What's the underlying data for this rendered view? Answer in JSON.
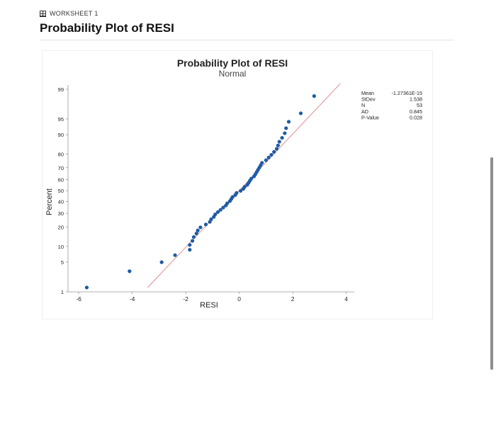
{
  "worksheet": {
    "label": "WORKSHEET 1"
  },
  "page": {
    "title": "Probability Plot of RESI"
  },
  "chart_data": {
    "type": "scatter",
    "title": "Probability Plot of RESI",
    "subtitle": "Normal",
    "xlabel": "RESI",
    "ylabel": "Percent",
    "x_ticks": [
      -6,
      -4,
      -2,
      0,
      2,
      4
    ],
    "y_ticks": [
      1,
      5,
      10,
      20,
      30,
      40,
      50,
      60,
      70,
      80,
      90,
      95,
      99
    ],
    "xlim": [
      -6.4,
      4.3
    ],
    "y_scale": "normal-probability",
    "grid": false,
    "fit_line": {
      "mean": 0,
      "stdev": 1.538,
      "color": "#e08f8f"
    },
    "point_color": "#1f5aa6",
    "x": [
      -5.7,
      -4.1,
      -2.9,
      -2.4,
      -1.85,
      -1.85,
      -1.75,
      -1.7,
      -1.6,
      -1.55,
      -1.45,
      -1.25,
      -1.1,
      -1.05,
      -0.95,
      -0.9,
      -0.8,
      -0.7,
      -0.6,
      -0.5,
      -0.45,
      -0.35,
      -0.3,
      -0.25,
      -0.15,
      -0.1,
      0.05,
      0.15,
      0.2,
      0.3,
      0.35,
      0.4,
      0.45,
      0.55,
      0.6,
      0.65,
      0.7,
      0.75,
      0.8,
      0.85,
      1.0,
      1.1,
      1.2,
      1.3,
      1.4,
      1.45,
      1.5,
      1.6,
      1.7,
      1.75,
      1.85,
      2.3,
      2.8
    ],
    "y": [
      1.3,
      3.2,
      5.0,
      6.9,
      8.7,
      10.6,
      12.4,
      14.3,
      16.2,
      18.0,
      19.9,
      21.8,
      23.6,
      25.5,
      27.3,
      29.2,
      31.1,
      32.9,
      34.8,
      36.6,
      38.5,
      40.4,
      42.2,
      44.1,
      45.9,
      47.8,
      49.7,
      51.5,
      53.4,
      55.2,
      57.1,
      59.0,
      60.8,
      62.7,
      64.5,
      66.4,
      68.3,
      70.1,
      72.0,
      73.8,
      75.7,
      77.6,
      79.4,
      81.3,
      83.1,
      85.0,
      86.9,
      88.7,
      90.6,
      92.4,
      94.3,
      96.2,
      98.5
    ],
    "stats": [
      {
        "label": "Mean",
        "value": "-1.27361E-15"
      },
      {
        "label": "StDev",
        "value": "1.538"
      },
      {
        "label": "N",
        "value": "53"
      },
      {
        "label": "AD",
        "value": "0.845"
      },
      {
        "label": "P-Value",
        "value": "0.028"
      }
    ]
  }
}
